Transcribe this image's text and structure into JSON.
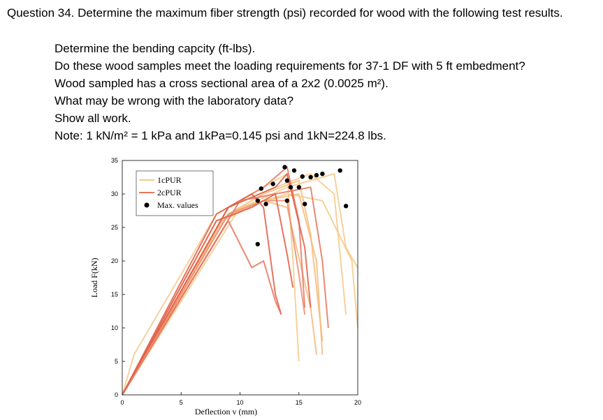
{
  "question": {
    "title": "Question 34. Determine the maximum fiber strength (psi) recorded for wood with the following test results.",
    "lines": [
      "Determine the bending capcity (ft-lbs).",
      "Do these wood samples meet the loading requirements for 37-1 DF with 5 ft embedment?",
      "Wood sampled has a cross sectional area of a 2x2 (0.0025 m²).",
      "What may be wrong with the laboratory data?",
      "Show all work.",
      "Note: 1 kN/m² = 1 kPa and 1kPa=0.145 psi and 1kN=224.8 lbs."
    ]
  },
  "chart_data": {
    "type": "line",
    "xlabel": "Deflection v (mm)",
    "ylabel": "Load F(kN)",
    "xlim": [
      0,
      20
    ],
    "ylim": [
      0,
      35
    ],
    "xticks": [
      0,
      5,
      10,
      15,
      20
    ],
    "yticks": [
      0,
      5,
      10,
      15,
      20,
      25,
      30,
      35
    ],
    "legend": {
      "placement": "top-left",
      "entries": [
        {
          "label": "1cPUR",
          "color": "#f6c98a"
        },
        {
          "label": "2cPUR",
          "color": "#e8735a"
        },
        {
          "label": "Max. values",
          "color": "#000000"
        }
      ]
    },
    "series": [
      {
        "group": "1cPUR",
        "color": "#f6c98a",
        "points": [
          [
            0,
            0
          ],
          [
            1,
            6
          ],
          [
            8,
            27
          ],
          [
            12,
            31
          ],
          [
            14,
            33
          ],
          [
            14.5,
            20
          ],
          [
            15,
            5
          ]
        ]
      },
      {
        "group": "1cPUR",
        "color": "#f8b878",
        "points": [
          [
            0,
            0
          ],
          [
            9,
            27
          ],
          [
            12,
            30
          ],
          [
            15,
            32
          ],
          [
            16,
            24
          ],
          [
            17,
            8
          ]
        ]
      },
      {
        "group": "1cPUR",
        "color": "#f6c98a",
        "points": [
          [
            0,
            0
          ],
          [
            9,
            28
          ],
          [
            13,
            31
          ],
          [
            16,
            33
          ],
          [
            18,
            30
          ],
          [
            19,
            12
          ]
        ]
      },
      {
        "group": "1cPUR",
        "color": "#f8b878",
        "points": [
          [
            0,
            0
          ],
          [
            8,
            26
          ],
          [
            12,
            29
          ],
          [
            15,
            30
          ],
          [
            16.5,
            20
          ],
          [
            17,
            6
          ]
        ]
      },
      {
        "group": "1cPUR",
        "color": "#f6c98a",
        "points": [
          [
            0,
            0
          ],
          [
            10,
            28
          ],
          [
            14,
            30
          ],
          [
            17,
            29
          ],
          [
            19.5,
            20
          ],
          [
            20,
            10
          ]
        ]
      },
      {
        "group": "1cPUR",
        "color": "#f8b878",
        "points": [
          [
            0,
            0
          ],
          [
            8.5,
            26
          ],
          [
            12,
            29
          ],
          [
            14,
            28
          ],
          [
            16,
            13
          ],
          [
            16.5,
            6
          ]
        ]
      },
      {
        "group": "1cPUR",
        "color": "#f6c98a",
        "points": [
          [
            0,
            0
          ],
          [
            9,
            27
          ],
          [
            14,
            31
          ],
          [
            18,
            33
          ],
          [
            19,
            22
          ],
          [
            20,
            19
          ]
        ]
      },
      {
        "group": "2cPUR",
        "color": "#e8735a",
        "points": [
          [
            0,
            0
          ],
          [
            9,
            28
          ],
          [
            12,
            31
          ],
          [
            14,
            34
          ],
          [
            15,
            26
          ],
          [
            15.5,
            13
          ]
        ]
      },
      {
        "group": "2cPUR",
        "color": "#e05c45",
        "points": [
          [
            0,
            0
          ],
          [
            8,
            27
          ],
          [
            11,
            30
          ],
          [
            12,
            28
          ],
          [
            13,
            15
          ],
          [
            13.5,
            12
          ]
        ]
      },
      {
        "group": "2cPUR",
        "color": "#e8735a",
        "points": [
          [
            0,
            0
          ],
          [
            9,
            26
          ],
          [
            11,
            19
          ],
          [
            12,
            20
          ],
          [
            13,
            14
          ],
          [
            13.5,
            12
          ]
        ]
      },
      {
        "group": "2cPUR",
        "color": "#e05c45",
        "points": [
          [
            0,
            0
          ],
          [
            9,
            28
          ],
          [
            13,
            31
          ],
          [
            14,
            33
          ],
          [
            15.5,
            22
          ],
          [
            16,
            13
          ]
        ]
      },
      {
        "group": "2cPUR",
        "color": "#e8735a",
        "points": [
          [
            0,
            0
          ],
          [
            10,
            29
          ],
          [
            13,
            30
          ],
          [
            16,
            31
          ],
          [
            17,
            20
          ],
          [
            17.5,
            10
          ]
        ]
      },
      {
        "group": "2cPUR",
        "color": "#ea8a6e",
        "points": [
          [
            0,
            0
          ],
          [
            9,
            27
          ],
          [
            12,
            29
          ],
          [
            14,
            29
          ],
          [
            15,
            18
          ],
          [
            15.5,
            12
          ]
        ]
      },
      {
        "group": "2cPUR",
        "color": "#e05c45",
        "points": [
          [
            0,
            0
          ],
          [
            8,
            26
          ],
          [
            11,
            28
          ],
          [
            13,
            30
          ],
          [
            14,
            21
          ],
          [
            14.5,
            16
          ]
        ]
      }
    ],
    "max_values": [
      [
        11.5,
        29
      ],
      [
        11.8,
        30.8
      ],
      [
        12.2,
        28.5
      ],
      [
        13.8,
        34
      ],
      [
        14,
        32
      ],
      [
        14,
        29
      ],
      [
        14.3,
        31
      ],
      [
        14.6,
        33.5
      ],
      [
        15,
        31
      ],
      [
        15.3,
        32.6
      ],
      [
        15.5,
        28.5
      ],
      [
        16,
        32.5
      ],
      [
        16.5,
        32.8
      ],
      [
        17,
        33
      ],
      [
        18.5,
        33.5
      ],
      [
        19,
        28.2
      ],
      [
        12.8,
        31.5
      ],
      [
        11.5,
        22.5
      ]
    ]
  }
}
